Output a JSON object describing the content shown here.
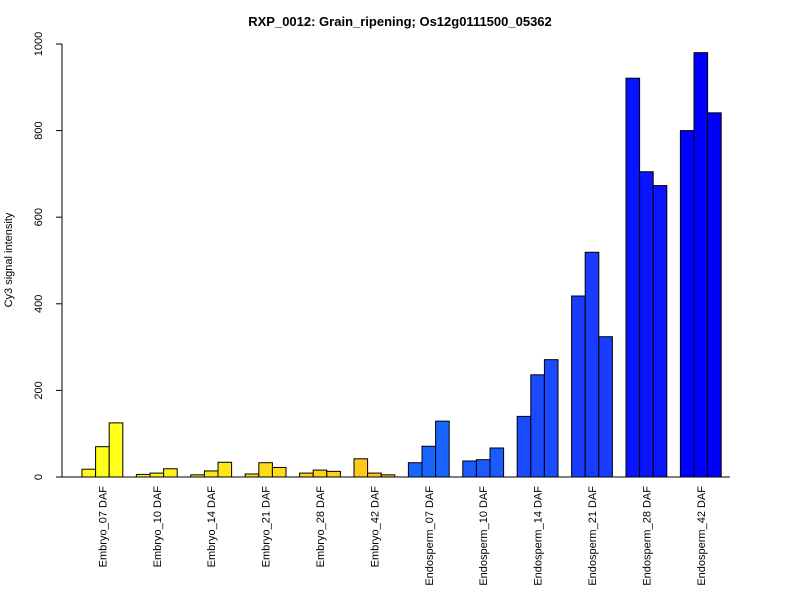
{
  "chart_data": {
    "type": "bar",
    "title": "RXP_0012: Grain_ripening; Os12g0111500_05362",
    "xlabel": "",
    "ylabel": "Cy3 signal intensity",
    "ylim": [
      0,
      1000
    ],
    "yticks": [
      0,
      200,
      400,
      600,
      800,
      1000
    ],
    "grid": false,
    "legend": "none",
    "categories": [
      "Embryo_07 DAF",
      "Embryo_10 DAF",
      "Embryo_14 DAF",
      "Embryo_21 DAF",
      "Embryo_28 DAF",
      "Embryo_42 DAF",
      "Endosperm_07 DAF",
      "Endosperm_10 DAF",
      "Endosperm_14 DAF",
      "Endosperm_21 DAF",
      "Endosperm_28 DAF",
      "Endosperm_42 DAF"
    ],
    "groups": [
      {
        "category": "Embryo_07 DAF",
        "color": "#ffff1a",
        "values": [
          18,
          70,
          125
        ]
      },
      {
        "category": "Embryo_10 DAF",
        "color": "#fff01a",
        "values": [
          6,
          9,
          19
        ]
      },
      {
        "category": "Embryo_14 DAF",
        "color": "#ffe61a",
        "values": [
          5,
          14,
          34
        ]
      },
      {
        "category": "Embryo_21 DAF",
        "color": "#ffdc1a",
        "values": [
          7,
          33,
          22
        ]
      },
      {
        "category": "Embryo_28 DAF",
        "color": "#ffd21a",
        "values": [
          9,
          16,
          13
        ]
      },
      {
        "category": "Embryo_42 DAF",
        "color": "#ffc81a",
        "values": [
          42,
          9,
          5
        ]
      },
      {
        "category": "Endosperm_07 DAF",
        "color": "#1a64ff",
        "values": [
          33,
          71,
          129
        ]
      },
      {
        "category": "Endosperm_10 DAF",
        "color": "#1a5aff",
        "values": [
          37,
          40,
          67
        ]
      },
      {
        "category": "Endosperm_14 DAF",
        "color": "#1a4bff",
        "values": [
          140,
          236,
          271
        ]
      },
      {
        "category": "Endosperm_21 DAF",
        "color": "#1a3cff",
        "values": [
          418,
          519,
          324
        ]
      },
      {
        "category": "Endosperm_28 DAF",
        "color": "#0a14ff",
        "values": [
          921,
          705,
          673
        ]
      },
      {
        "category": "Endosperm_42 DAF",
        "color": "#0000ff",
        "values": [
          800,
          980,
          841
        ]
      }
    ]
  }
}
